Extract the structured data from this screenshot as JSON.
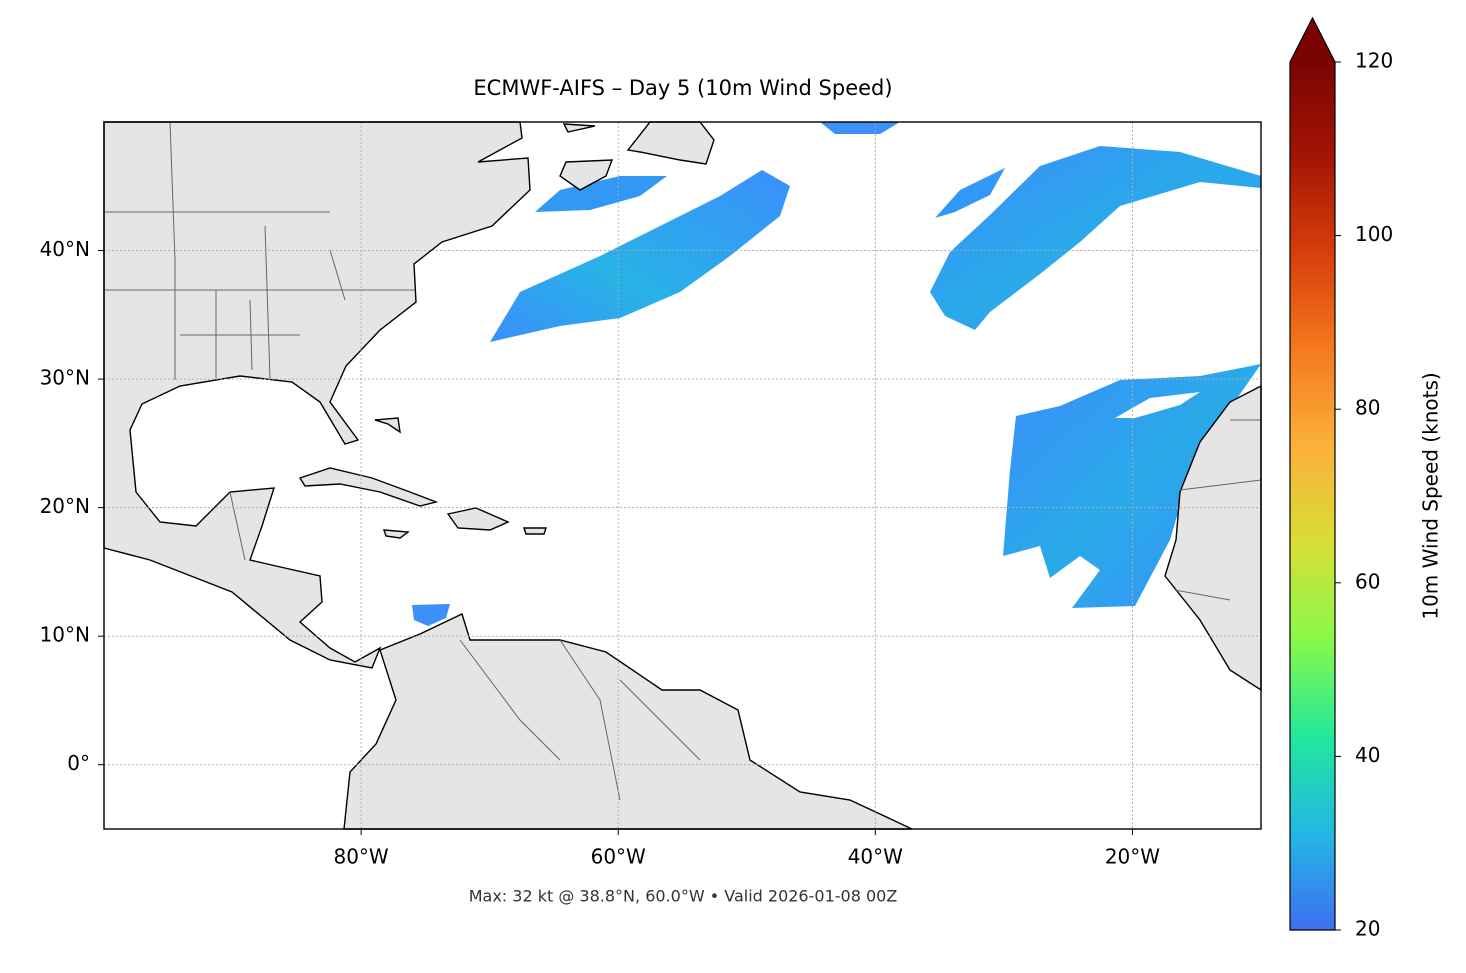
{
  "chart_data": {
    "type": "map",
    "title": "ECMWF-AIFS – Day 5 (10m Wind Speed)",
    "caption": "Max: 32 kt @ 38.8°N, 60.0°W • Valid 2026-01-08 00Z",
    "xlim": [
      -100,
      -10
    ],
    "ylim": [
      -5,
      50
    ],
    "xticks": [
      {
        "value": -80,
        "label": "80°W"
      },
      {
        "value": -60,
        "label": "60°W"
      },
      {
        "value": -40,
        "label": "40°W"
      },
      {
        "value": -20,
        "label": "20°W"
      }
    ],
    "yticks": [
      {
        "value": 0,
        "label": "0°"
      },
      {
        "value": 10,
        "label": "10°N"
      },
      {
        "value": 20,
        "label": "20°N"
      },
      {
        "value": 30,
        "label": "30°N"
      },
      {
        "value": 40,
        "label": "40°N"
      }
    ],
    "grid": true,
    "colorbar": {
      "label": "10m Wind Speed (knots)",
      "lim": [
        20,
        120
      ],
      "ticks": [
        20,
        40,
        60,
        80,
        100,
        120
      ],
      "colors": [
        "#3f6ff2",
        "#23b7e3",
        "#22e89c",
        "#88f94a",
        "#d6df36",
        "#fbb13a",
        "#f57a1f",
        "#d7400b",
        "#a41504",
        "#7a0403"
      ]
    }
  }
}
